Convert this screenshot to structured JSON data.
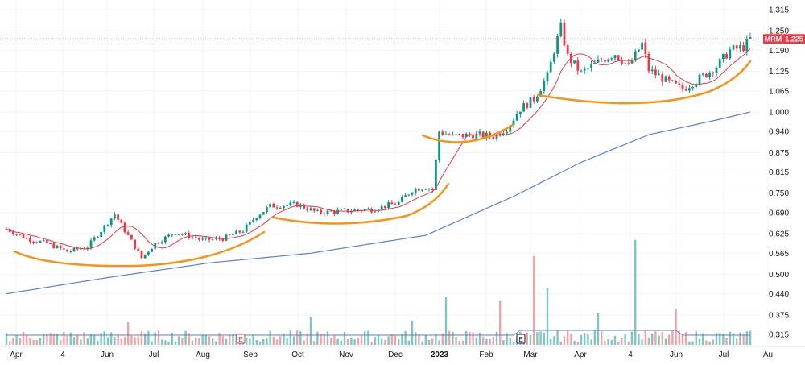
{
  "chart_data": {
    "type": "candlestick",
    "ticker_label": "MRM",
    "last_price": "1.225",
    "y_ticks": [
      "1.315",
      "1.250",
      "1.190",
      "1.125",
      "1.065",
      "1.000",
      "0.940",
      "0.875",
      "0.815",
      "0.750",
      "0.690",
      "0.625",
      "0.565",
      "0.500",
      "0.440",
      "0.375",
      "0.315"
    ],
    "x_ticks": [
      "Apr",
      "4",
      "Jun",
      "Jul",
      "Aug",
      "Sep",
      "Oct",
      "Nov",
      "Dec",
      "2023",
      "Feb",
      "Mar",
      "Apr",
      "4",
      "Jun",
      "Jul",
      "Au"
    ],
    "earnings_markers": [
      {
        "label": "E",
        "date_index": 5
      },
      {
        "label": "E",
        "date_index": 11
      }
    ],
    "series": [
      {
        "type": "ma-short",
        "color": "#f23645"
      },
      {
        "type": "ma-long",
        "color": "#5b7fd6"
      }
    ],
    "price_path": [
      [
        0,
        0.64
      ],
      [
        6,
        0.61
      ],
      [
        12,
        0.595
      ],
      [
        18,
        0.57
      ],
      [
        24,
        0.585
      ],
      [
        30,
        0.66
      ],
      [
        32,
        0.685
      ],
      [
        38,
        0.585
      ],
      [
        40,
        0.55
      ],
      [
        44,
        0.595
      ],
      [
        50,
        0.63
      ],
      [
        58,
        0.605
      ],
      [
        64,
        0.61
      ],
      [
        70,
        0.635
      ],
      [
        74,
        0.68
      ],
      [
        78,
        0.71
      ],
      [
        86,
        0.715
      ],
      [
        92,
        0.69
      ],
      [
        100,
        0.695
      ],
      [
        108,
        0.7
      ],
      [
        116,
        0.72
      ],
      [
        120,
        0.76
      ],
      [
        124,
        0.77
      ],
      [
        126,
        0.76
      ],
      [
        128,
        0.94
      ],
      [
        132,
        0.925
      ],
      [
        138,
        0.93
      ],
      [
        144,
        0.925
      ],
      [
        148,
        0.95
      ],
      [
        152,
        1.01
      ],
      [
        156,
        1.04
      ],
      [
        160,
        1.11
      ],
      [
        162,
        1.19
      ],
      [
        164,
        1.26
      ],
      [
        166,
        1.17
      ],
      [
        170,
        1.12
      ],
      [
        176,
        1.16
      ],
      [
        180,
        1.18
      ],
      [
        184,
        1.14
      ],
      [
        188,
        1.21
      ],
      [
        190,
        1.13
      ],
      [
        196,
        1.09
      ],
      [
        200,
        1.07
      ],
      [
        206,
        1.11
      ],
      [
        210,
        1.14
      ],
      [
        214,
        1.19
      ],
      [
        218,
        1.2
      ],
      [
        220,
        1.225
      ]
    ],
    "ma_long_path": [
      [
        0,
        0.44
      ],
      [
        30,
        0.49
      ],
      [
        60,
        0.535
      ],
      [
        90,
        0.565
      ],
      [
        124,
        0.62
      ],
      [
        150,
        0.74
      ],
      [
        170,
        0.845
      ],
      [
        190,
        0.93
      ],
      [
        210,
        0.975
      ],
      [
        220,
        1.0
      ]
    ],
    "volume_profile": {
      "color_up": "#7ec7c0",
      "color_down": "#f4a3a3"
    },
    "annotation_arcs_color": "#f7931a"
  }
}
